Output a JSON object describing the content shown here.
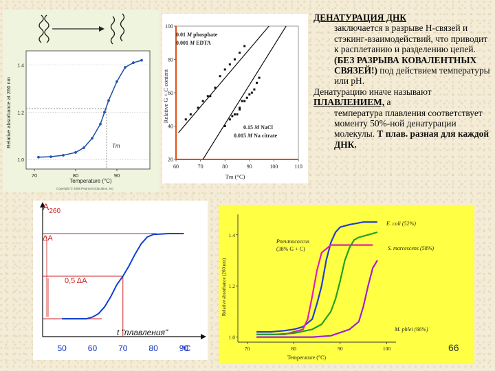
{
  "text": {
    "title": "ДЕНАТУРАЦИЯ ДНК",
    "line1": "заключается в разрыве Н-связей и стэкинг-взаимодействий, что приводит к расплетанию и разделению цепей. ",
    "line1_bold": "(БЕЗ РАЗРЫВА КОВАЛЕНТНЫХ СВЯЗЕЙ!)",
    "line2": " под действием температуры или pH.",
    "line3": "Денатурацию иначе называют ",
    "line3_bold": "ПЛАВЛЕНИЕМ,",
    "line3_tail": " а",
    "line4": "температура плавления соответствует моменту 50%-ной денатурации молекулы. ",
    "line4_bold": "Т плав. разная для каждой ДНК."
  },
  "page_number": "66",
  "chart_data": [
    {
      "type": "line",
      "xlabel": "Temperature (°C)",
      "ylabel": "Relative absorbance at 260 nm",
      "x_ticks": [
        "70",
        "80",
        "90"
      ],
      "y_ticks": [
        "1.0",
        "1.2",
        "1.4"
      ],
      "xlim": [
        68,
        98
      ],
      "ylim": [
        0.96,
        1.46
      ],
      "annotation": "Tm",
      "copyright": "Copyright © 2006 Pearson Education, Inc.",
      "series": [
        {
          "x": [
            71,
            74,
            77,
            80,
            82,
            84,
            86,
            87,
            88,
            90,
            92,
            94,
            96
          ],
          "y": [
            1.01,
            1.012,
            1.018,
            1.03,
            1.05,
            1.09,
            1.15,
            1.2,
            1.25,
            1.33,
            1.39,
            1.41,
            1.42
          ]
        }
      ]
    },
    {
      "type": "scatter",
      "xlabel": "Tm (°C)",
      "ylabel": "Relative G + C content",
      "x_ticks": [
        "60",
        "70",
        "80",
        "90",
        "100",
        "110"
      ],
      "y_ticks": [
        "20",
        "40",
        "60",
        "80",
        "100"
      ],
      "xlim": [
        60,
        110
      ],
      "ylim": [
        20,
        100
      ],
      "series": [
        {
          "name": "0.01 M phosphate 0.001 M EDTA",
          "x": [
            64,
            66,
            69,
            71,
            73,
            74,
            76,
            78,
            80,
            82,
            84,
            86,
            88
          ],
          "y": [
            44,
            47,
            51,
            55,
            58,
            58,
            63,
            70,
            74,
            77,
            80,
            84,
            88
          ]
        },
        {
          "name": "0.15 M NaCl 0.015 M Na citrate",
          "x": [
            80,
            82,
            83,
            84,
            85,
            86,
            86,
            87,
            88,
            89,
            90,
            91,
            92,
            93,
            94
          ],
          "y": [
            40,
            44,
            46,
            47,
            47,
            50,
            51,
            55,
            55,
            57,
            59,
            60,
            62,
            66,
            69
          ]
        }
      ],
      "fit_lines": [
        {
          "from": [
            61,
            36
          ],
          "to": [
            98,
            100
          ]
        },
        {
          "from": [
            71,
            20
          ],
          "to": [
            105,
            100
          ]
        }
      ]
    },
    {
      "type": "line",
      "ylabel": "A260",
      "x_ticks": [
        "50",
        "60",
        "70",
        "80",
        "90"
      ],
      "x_unit": "°C",
      "xlim": [
        45,
        96
      ],
      "annotations": [
        "ΔA",
        "0,5 ΔA",
        "t \"плавления\""
      ],
      "series": [
        {
          "x": [
            50,
            55,
            58,
            60,
            62,
            64,
            66,
            68,
            70,
            72,
            74,
            76,
            78,
            80,
            85,
            90
          ],
          "y": [
            0.0,
            0.0,
            0.0,
            0.02,
            0.06,
            0.14,
            0.26,
            0.4,
            0.5,
            0.62,
            0.76,
            0.88,
            0.96,
            0.99,
            1.0,
            1.0
          ]
        }
      ]
    },
    {
      "type": "line",
      "xlabel": "Temperature (°C)",
      "ylabel": "Relative absorbance (260 nm)",
      "x_ticks": [
        "70",
        "80",
        "90",
        "100"
      ],
      "y_ticks": [
        "1.0",
        "1.2",
        "1.4"
      ],
      "xlim": [
        68,
        102
      ],
      "ylim": [
        0.98,
        1.48
      ],
      "series": [
        {
          "name": "E. coli (52%)",
          "color": "#1f3fd0",
          "x": [
            72,
            75,
            78,
            80,
            82,
            84,
            85,
            86,
            87,
            88,
            89,
            90,
            92,
            95,
            98
          ],
          "y": [
            1.02,
            1.02,
            1.025,
            1.03,
            1.04,
            1.07,
            1.13,
            1.2,
            1.3,
            1.37,
            1.41,
            1.43,
            1.44,
            1.45,
            1.45
          ]
        },
        {
          "name": "Pneumococcus (38% G + C)",
          "color": "#e020b0",
          "x": [
            72,
            74,
            76,
            78,
            80,
            82,
            83,
            84,
            85,
            86,
            88,
            92,
            97
          ],
          "y": [
            1.01,
            1.01,
            1.01,
            1.01,
            1.02,
            1.03,
            1.07,
            1.16,
            1.26,
            1.33,
            1.36,
            1.36,
            1.36
          ]
        },
        {
          "name": "S. marcescens (58%)",
          "color": "#20a020",
          "x": [
            72,
            76,
            80,
            84,
            86,
            88,
            89,
            90,
            91,
            92,
            93,
            94,
            96,
            98
          ],
          "y": [
            1.01,
            1.01,
            1.015,
            1.03,
            1.05,
            1.1,
            1.15,
            1.22,
            1.3,
            1.35,
            1.38,
            1.39,
            1.4,
            1.41
          ]
        },
        {
          "name": "M. phlei (66%)",
          "color": "#a020d0",
          "x": [
            72,
            78,
            84,
            88,
            92,
            94,
            95,
            96,
            97,
            98
          ],
          "y": [
            1.0,
            1.0,
            1.0,
            1.005,
            1.03,
            1.06,
            1.12,
            1.2,
            1.27,
            1.3
          ]
        }
      ]
    }
  ]
}
